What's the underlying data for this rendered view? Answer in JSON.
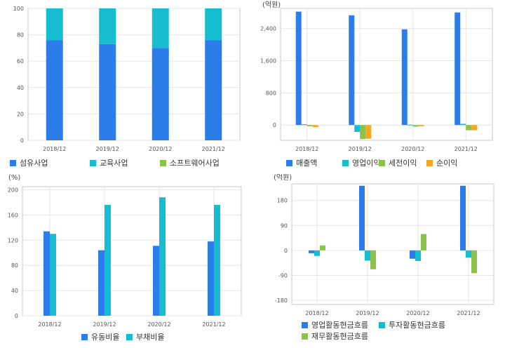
{
  "colors": {
    "blue": "#2b7de9",
    "cyan": "#16bcd0",
    "green": "#8bc34a",
    "orange": "#f5a623",
    "grid": "#e6e6e6",
    "frame": "#c8c8c8"
  },
  "chart_data": [
    {
      "type": "bar",
      "stacked": true,
      "categories": [
        "2018/12",
        "2019/12",
        "2020/12",
        "2021/12"
      ],
      "series": [
        {
          "name": "섬유사업",
          "color": "#2b7de9",
          "values": [
            76,
            73,
            70,
            76
          ]
        },
        {
          "name": "교육사업",
          "color": "#16bcd0",
          "values": [
            24,
            27,
            30,
            24
          ]
        },
        {
          "name": "소프트웨어사업",
          "color": "#8bc34a",
          "values": [
            0,
            0,
            0,
            0
          ]
        }
      ],
      "ylim": [
        0,
        100
      ],
      "yticks": [
        "100",
        "80",
        "60",
        "40",
        "20",
        "0"
      ],
      "unit": "",
      "grid": true,
      "legend_position": "bottom"
    },
    {
      "type": "bar",
      "categories": [
        "2018/12",
        "2019/12",
        "2020/12",
        "2021/12"
      ],
      "series": [
        {
          "name": "매출액",
          "color": "#2b7de9",
          "values": [
            2820,
            2730,
            2380,
            2800
          ]
        },
        {
          "name": "영업이익",
          "color": "#16bcd0",
          "values": [
            20,
            -170,
            10,
            30
          ]
        },
        {
          "name": "세전이익",
          "color": "#8bc34a",
          "values": [
            -30,
            -350,
            -40,
            -130
          ]
        },
        {
          "name": "순이익",
          "color": "#f5a623",
          "values": [
            -50,
            -340,
            -30,
            -130
          ]
        }
      ],
      "ylim": [
        -380,
        2900
      ],
      "yticks": [
        "2,400",
        "1,600",
        "800",
        "0"
      ],
      "unit": "(억원)",
      "grid": true,
      "legend_position": "bottom"
    },
    {
      "type": "bar",
      "categories": [
        "2018/12",
        "2019/12",
        "2020/12",
        "2021/12"
      ],
      "series": [
        {
          "name": "유동비율",
          "color": "#2b7de9",
          "values": [
            134,
            104,
            111,
            118
          ]
        },
        {
          "name": "부채비율",
          "color": "#16bcd0",
          "values": [
            130,
            176,
            188,
            176
          ]
        }
      ],
      "ylim": [
        0,
        205
      ],
      "yticks": [
        "200",
        "160",
        "120",
        "80",
        "40",
        "0"
      ],
      "unit": "(%)",
      "grid": true,
      "legend_position": "bottom"
    },
    {
      "type": "bar",
      "categories": [
        "2018/12",
        "2019/12",
        "2020/12",
        "2021/12"
      ],
      "series": [
        {
          "name": "영업활동현금흐름",
          "color": "#2b7de9",
          "values": [
            -10,
            233,
            -30,
            233
          ]
        },
        {
          "name": "투자활동현금흐름",
          "color": "#16bcd0",
          "values": [
            -20,
            -37,
            -38,
            -26
          ]
        },
        {
          "name": "재무활동현금흐름",
          "color": "#8bc34a",
          "values": [
            18,
            -68,
            59,
            -82
          ]
        }
      ],
      "ylim": [
        -195,
        240
      ],
      "yticks": [
        "180",
        "90",
        "0",
        "-90",
        "-180"
      ],
      "unit": "(억원)",
      "grid": true,
      "legend_position": "bottom"
    }
  ]
}
